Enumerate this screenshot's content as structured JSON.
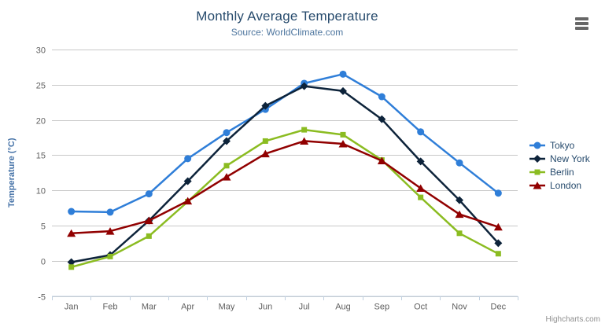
{
  "chart_data": {
    "type": "line",
    "title": "Monthly Average Temperature",
    "subtitle": "Source: WorldClimate.com",
    "credits": "Highcharts.com",
    "categories": [
      "Jan",
      "Feb",
      "Mar",
      "Apr",
      "May",
      "Jun",
      "Jul",
      "Aug",
      "Sep",
      "Oct",
      "Nov",
      "Dec"
    ],
    "xlabel": "",
    "ylabel": "Temperature (°C)",
    "ylim": [
      -5,
      30
    ],
    "ytick_step": 5,
    "grid": true,
    "legend_position": "right",
    "colors": {
      "grid_line": "#c8c8c8",
      "axis_line": "#c0d0e0",
      "tick": "#c0d0e0",
      "axis_text": "#606060",
      "yaxis_title_text": "#4572a7",
      "title_text": "#274b6d",
      "subtitle_text": "#4d759e",
      "legend_text": "#274b6d",
      "credits_text": "#909090",
      "menu_icon": "#666666"
    },
    "series": [
      {
        "name": "Tokyo",
        "color": "#2f7ed8",
        "symbol": "circle",
        "values": [
          7.0,
          6.9,
          9.5,
          14.5,
          18.2,
          21.5,
          25.2,
          26.5,
          23.3,
          18.3,
          13.9,
          9.6
        ]
      },
      {
        "name": "New York",
        "color": "#0d233a",
        "symbol": "diamond",
        "values": [
          -0.2,
          0.8,
          5.7,
          11.3,
          17.0,
          22.0,
          24.8,
          24.1,
          20.1,
          14.1,
          8.6,
          2.5
        ]
      },
      {
        "name": "Berlin",
        "color": "#8bbc21",
        "symbol": "square",
        "values": [
          -0.9,
          0.6,
          3.5,
          8.4,
          13.5,
          17.0,
          18.6,
          17.9,
          14.3,
          9.0,
          3.9,
          1.0
        ]
      },
      {
        "name": "London",
        "color": "#910000",
        "symbol": "triangle",
        "values": [
          3.9,
          4.2,
          5.7,
          8.5,
          11.9,
          15.2,
          17.0,
          16.6,
          14.2,
          10.3,
          6.6,
          4.8
        ]
      }
    ]
  }
}
